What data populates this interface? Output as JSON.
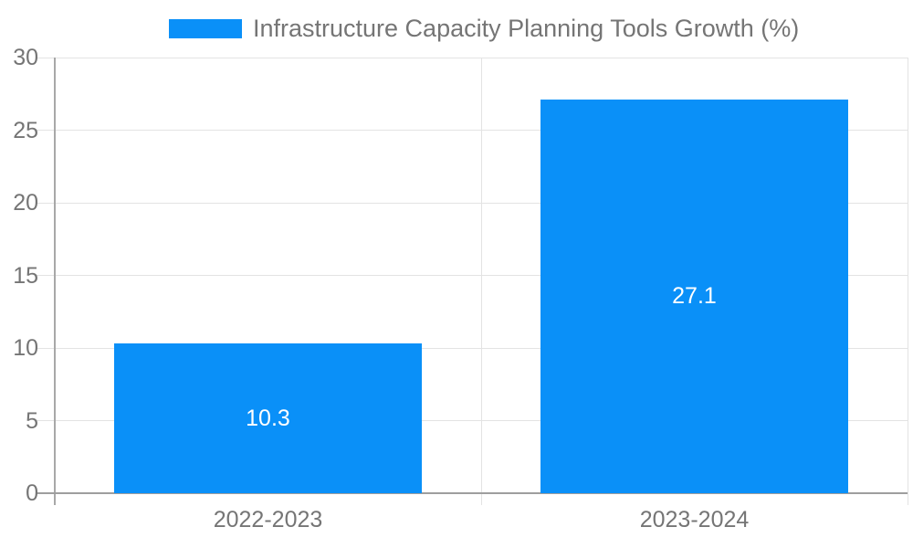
{
  "chart_data": {
    "type": "bar",
    "title": "Infrastructure Capacity Planning Tools Growth (%)",
    "series_name": "Infrastructure Capacity Planning Tools Growth (%)",
    "categories": [
      "2022-2023",
      "2023-2024"
    ],
    "values": [
      10.3,
      27.1
    ],
    "value_labels": [
      "10.3",
      "27.1"
    ],
    "xlabel": "",
    "ylabel": "",
    "ylim": [
      0,
      30
    ],
    "ytick_step": 5,
    "yticks": [
      "0",
      "5",
      "10",
      "15",
      "20",
      "25",
      "30"
    ],
    "grid": true,
    "legend_position": "top-center"
  },
  "colors": {
    "background": "#ffffff",
    "bar": "#0a90f8",
    "value_label": "#ffffff",
    "axis_text": "#757575",
    "title_text": "#757575",
    "gridline": "#e3e3e3",
    "axis_line": "#a8a8a8",
    "axis_x_line": "#9e9e9e"
  }
}
